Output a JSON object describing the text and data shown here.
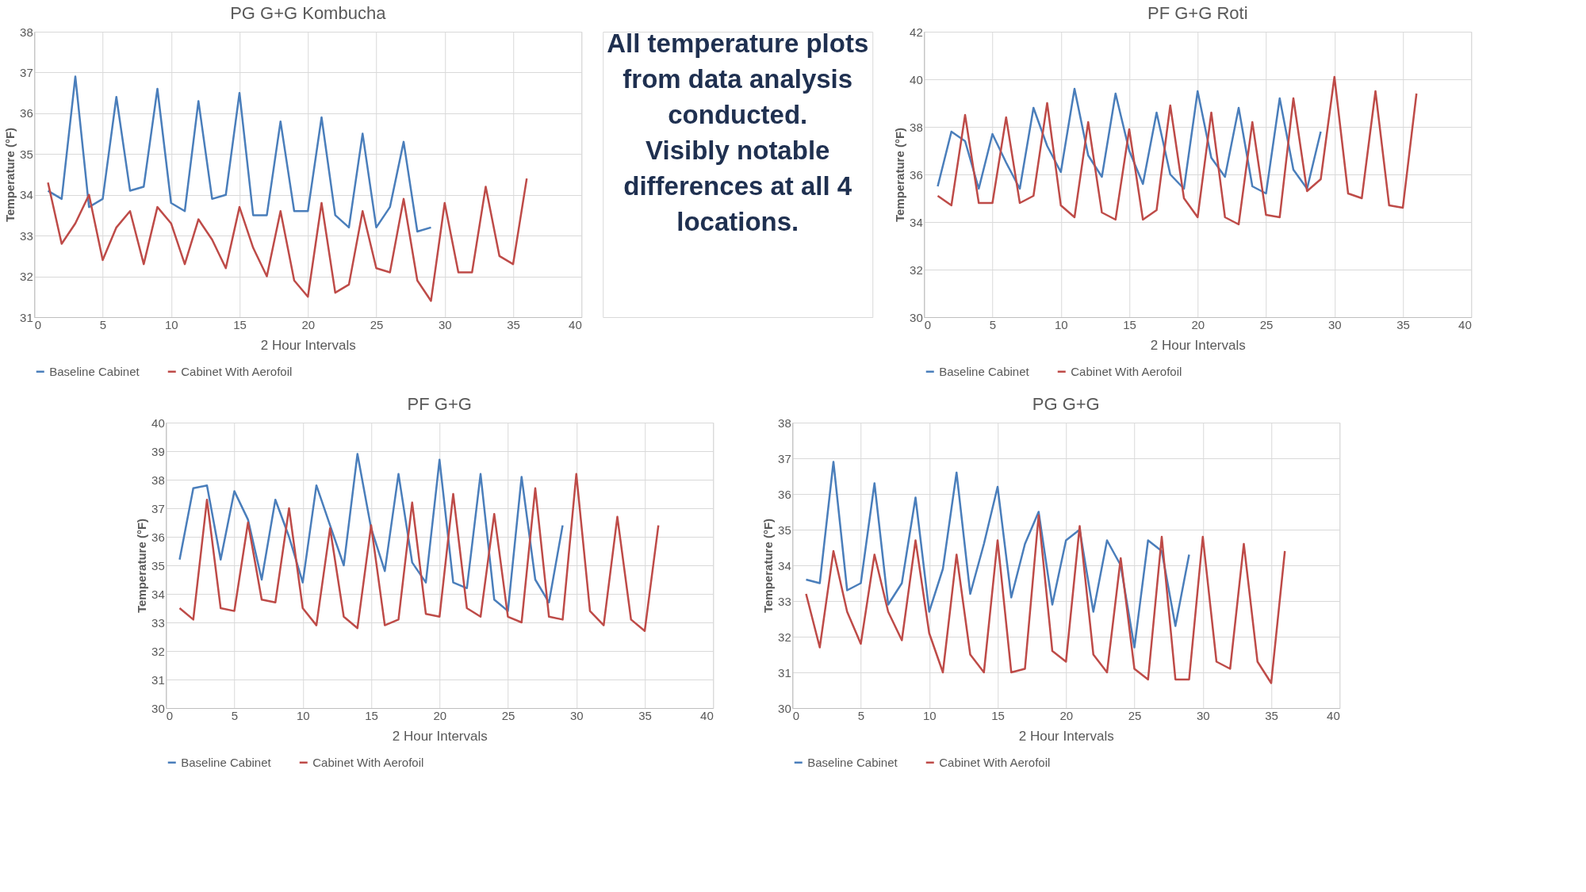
{
  "chart_data": [
    {
      "type": "line",
      "title": "PG G+G Kombucha",
      "xlabel": "2 Hour Intervals",
      "ylabel": "Temperature (°F)",
      "x": [
        1,
        2,
        3,
        4,
        5,
        6,
        7,
        8,
        9,
        10,
        11,
        12,
        13,
        14,
        15,
        16,
        17,
        18,
        19,
        20,
        21,
        22,
        23,
        24,
        25,
        26,
        27,
        28,
        29,
        30,
        31,
        32,
        33,
        34,
        35,
        36
      ],
      "xlim": [
        0,
        40
      ],
      "xticks": [
        0,
        5,
        10,
        15,
        20,
        25,
        30,
        35,
        40
      ],
      "ylim": [
        31,
        38
      ],
      "yticks": [
        31,
        32,
        33,
        34,
        35,
        36,
        37,
        38
      ],
      "grid": true,
      "legend": "bottom",
      "marker": "none",
      "line_style": "solid",
      "series": [
        {
          "name": "Baseline Cabinet",
          "color": "#4a7ebb",
          "values": [
            34.1,
            33.9,
            36.9,
            33.7,
            33.9,
            36.4,
            34.1,
            34.2,
            36.6,
            33.8,
            33.6,
            36.3,
            33.9,
            34.0,
            36.5,
            33.5,
            33.5,
            35.8,
            33.6,
            33.6,
            35.9,
            33.5,
            33.2,
            35.5,
            33.2,
            33.7,
            35.3,
            33.1,
            33.2,
            null,
            null,
            null,
            null,
            null,
            null,
            null
          ]
        },
        {
          "name": "Cabinet With Aerofoil",
          "color": "#be4b48",
          "values": [
            34.3,
            32.8,
            33.3,
            34.0,
            32.4,
            33.2,
            33.6,
            32.3,
            33.7,
            33.3,
            32.3,
            33.4,
            32.9,
            32.2,
            33.7,
            32.7,
            32.0,
            33.6,
            31.9,
            31.5,
            33.8,
            31.6,
            31.8,
            33.6,
            32.2,
            32.1,
            33.9,
            31.9,
            31.4,
            33.8,
            32.1,
            32.1,
            34.2,
            32.5,
            32.3,
            34.4
          ]
        }
      ]
    },
    {
      "type": "other",
      "annotations": [
        "All temperature plots from data analysis conducted.",
        "Visibly notable differences at all 4 locations."
      ]
    },
    {
      "type": "line",
      "title": "PF G+G Roti",
      "xlabel": "2 Hour Intervals",
      "ylabel": "Temperature (°F)",
      "x": [
        1,
        2,
        3,
        4,
        5,
        6,
        7,
        8,
        9,
        10,
        11,
        12,
        13,
        14,
        15,
        16,
        17,
        18,
        19,
        20,
        21,
        22,
        23,
        24,
        25,
        26,
        27,
        28,
        29,
        30,
        31,
        32,
        33,
        34,
        35,
        36
      ],
      "xlim": [
        0,
        40
      ],
      "xticks": [
        0,
        5,
        10,
        15,
        20,
        25,
        30,
        35,
        40
      ],
      "ylim": [
        30,
        42
      ],
      "yticks": [
        30,
        32,
        34,
        36,
        38,
        40,
        42
      ],
      "grid": true,
      "legend": "bottom",
      "marker": "none",
      "line_style": "solid",
      "series": [
        {
          "name": "Baseline Cabinet",
          "color": "#4a7ebb",
          "values": [
            35.5,
            37.8,
            37.4,
            35.4,
            37.7,
            36.5,
            35.4,
            38.8,
            37.2,
            36.1,
            39.6,
            36.8,
            35.9,
            39.4,
            37.0,
            35.6,
            38.6,
            36.0,
            35.4,
            39.5,
            36.7,
            35.9,
            38.8,
            35.5,
            35.2,
            39.2,
            36.2,
            35.4,
            37.8,
            null,
            null,
            null,
            null,
            null,
            null,
            null
          ]
        },
        {
          "name": "Cabinet With Aerofoil",
          "color": "#be4b48",
          "values": [
            35.1,
            34.7,
            38.5,
            34.8,
            34.8,
            38.4,
            34.8,
            35.1,
            39.0,
            34.7,
            34.2,
            38.2,
            34.4,
            34.1,
            37.9,
            34.1,
            34.5,
            38.9,
            35.0,
            34.2,
            38.6,
            34.2,
            33.9,
            38.2,
            34.3,
            34.2,
            39.2,
            35.3,
            35.8,
            40.1,
            35.2,
            35.0,
            39.5,
            34.7,
            34.6,
            39.4
          ]
        }
      ]
    },
    {
      "type": "line",
      "title": "PF G+G",
      "xlabel": "2 Hour Intervals",
      "ylabel": "Temperature (°F)",
      "x": [
        1,
        2,
        3,
        4,
        5,
        6,
        7,
        8,
        9,
        10,
        11,
        12,
        13,
        14,
        15,
        16,
        17,
        18,
        19,
        20,
        21,
        22,
        23,
        24,
        25,
        26,
        27,
        28,
        29,
        30,
        31,
        32,
        33,
        34,
        35,
        36
      ],
      "xlim": [
        0,
        40
      ],
      "xticks": [
        0,
        5,
        10,
        15,
        20,
        25,
        30,
        35,
        40
      ],
      "ylim": [
        30,
        40
      ],
      "yticks": [
        30,
        31,
        32,
        33,
        34,
        35,
        36,
        37,
        38,
        39,
        40
      ],
      "grid": true,
      "legend": "bottom",
      "marker": "none",
      "line_style": "solid",
      "series": [
        {
          "name": "Baseline Cabinet",
          "color": "#4a7ebb",
          "values": [
            35.2,
            37.7,
            37.8,
            35.2,
            37.6,
            36.6,
            34.5,
            37.3,
            36.0,
            34.4,
            37.8,
            36.4,
            35.0,
            38.9,
            36.3,
            34.8,
            38.2,
            35.1,
            34.4,
            38.7,
            34.4,
            34.2,
            38.2,
            33.8,
            33.4,
            38.1,
            34.5,
            33.7,
            36.4,
            null,
            null,
            null,
            null,
            null,
            null,
            null
          ]
        },
        {
          "name": "Cabinet With Aerofoil",
          "color": "#be4b48",
          "values": [
            33.5,
            33.1,
            37.3,
            33.5,
            33.4,
            36.5,
            33.8,
            33.7,
            37.0,
            33.5,
            32.9,
            36.3,
            33.2,
            32.8,
            36.4,
            32.9,
            33.1,
            37.2,
            33.3,
            33.2,
            37.5,
            33.5,
            33.2,
            36.8,
            33.2,
            33.0,
            37.7,
            33.2,
            33.1,
            38.2,
            33.4,
            32.9,
            36.7,
            33.1,
            32.7,
            36.4
          ]
        }
      ]
    },
    {
      "type": "line",
      "title": "PG G+G",
      "xlabel": "2 Hour Intervals",
      "ylabel": "Temperature (°F)",
      "x": [
        1,
        2,
        3,
        4,
        5,
        6,
        7,
        8,
        9,
        10,
        11,
        12,
        13,
        14,
        15,
        16,
        17,
        18,
        19,
        20,
        21,
        22,
        23,
        24,
        25,
        26,
        27,
        28,
        29,
        30,
        31,
        32,
        33,
        34,
        35,
        36
      ],
      "xlim": [
        0,
        40
      ],
      "xticks": [
        0,
        5,
        10,
        15,
        20,
        25,
        30,
        35,
        40
      ],
      "ylim": [
        30,
        38
      ],
      "yticks": [
        30,
        31,
        32,
        33,
        34,
        35,
        36,
        37,
        38
      ],
      "grid": true,
      "legend": "bottom",
      "marker": "none",
      "line_style": "solid",
      "series": [
        {
          "name": "Baseline Cabinet",
          "color": "#4a7ebb",
          "values": [
            33.6,
            33.5,
            36.9,
            33.3,
            33.5,
            36.3,
            32.9,
            33.5,
            35.9,
            32.7,
            33.9,
            36.6,
            33.2,
            34.6,
            36.2,
            33.1,
            34.6,
            35.5,
            32.9,
            34.7,
            35.0,
            32.7,
            34.7,
            34.0,
            31.7,
            34.7,
            34.4,
            32.3,
            34.3,
            null,
            null,
            null,
            null,
            null,
            null,
            null
          ]
        },
        {
          "name": "Cabinet With Aerofoil",
          "color": "#be4b48",
          "values": [
            33.2,
            31.7,
            34.4,
            32.7,
            31.8,
            34.3,
            32.7,
            31.9,
            34.7,
            32.1,
            31.0,
            34.3,
            31.5,
            31.0,
            34.7,
            31.0,
            31.1,
            35.4,
            31.6,
            31.3,
            35.1,
            31.5,
            31.0,
            34.2,
            31.1,
            30.8,
            34.8,
            30.8,
            30.8,
            34.8,
            31.3,
            31.1,
            34.6,
            31.3,
            30.7,
            34.4
          ]
        }
      ]
    }
  ]
}
